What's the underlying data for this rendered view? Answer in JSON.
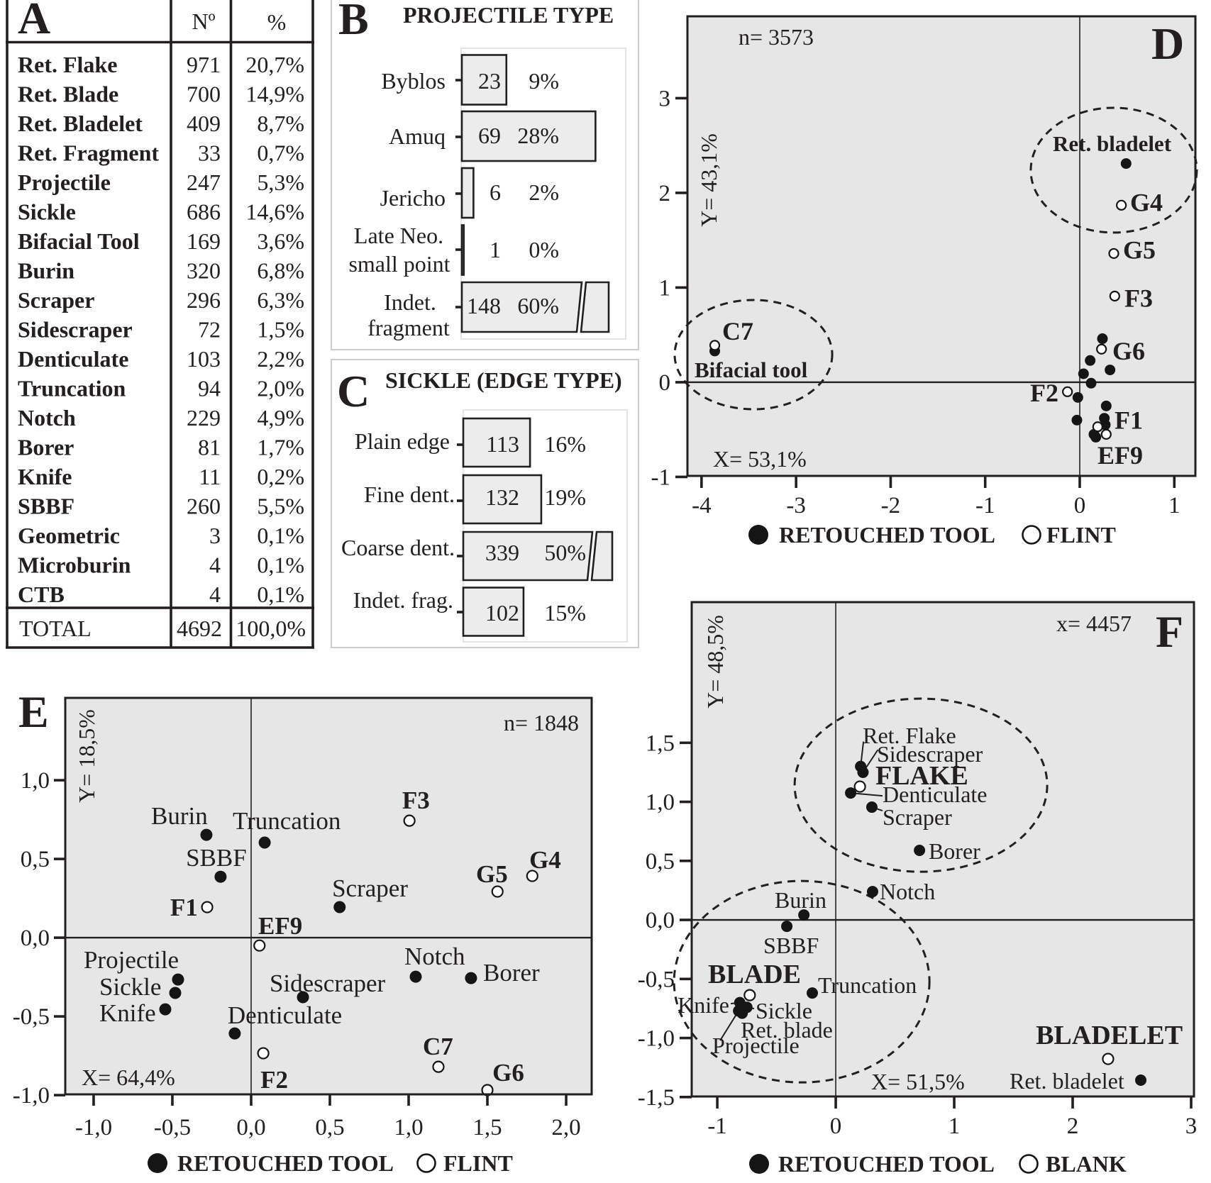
{
  "figure": {
    "colors": {
      "background": "#ffffff",
      "plot_background": "#e6e6e6",
      "bar_fill": "#ececec",
      "ink": "#231f20",
      "frame_gray": "#cdcdcd"
    }
  },
  "chart_data": [
    {
      "panel": "A",
      "type": "table",
      "label": "A",
      "columns": {
        "name": "",
        "count": "Nº",
        "percent": "%"
      },
      "rows": [
        {
          "name": "Ret. Flake",
          "count": "971",
          "percent": "20,7%"
        },
        {
          "name": "Ret. Blade",
          "count": "700",
          "percent": "14,9%"
        },
        {
          "name": "Ret. Bladelet",
          "count": "409",
          "percent": "8,7%"
        },
        {
          "name": "Ret. Fragment",
          "count": "33",
          "percent": "0,7%"
        },
        {
          "name": "Projectile",
          "count": "247",
          "percent": "5,3%"
        },
        {
          "name": "Sickle",
          "count": "686",
          "percent": "14,6%"
        },
        {
          "name": "Bifacial Tool",
          "count": "169",
          "percent": "3,6%"
        },
        {
          "name": "Burin",
          "count": "320",
          "percent": "6,8%"
        },
        {
          "name": "Scraper",
          "count": "296",
          "percent": "6,3%"
        },
        {
          "name": "Sidescraper",
          "count": "72",
          "percent": "1,5%"
        },
        {
          "name": "Denticulate",
          "count": "103",
          "percent": "2,2%"
        },
        {
          "name": "Truncation",
          "count": "94",
          "percent": "2,0%"
        },
        {
          "name": "Notch",
          "count": "229",
          "percent": "4,9%"
        },
        {
          "name": "Borer",
          "count": "81",
          "percent": "1,7%"
        },
        {
          "name": "Knife",
          "count": "11",
          "percent": "0,2%"
        },
        {
          "name": "SBBF",
          "count": "260",
          "percent": "5,5%"
        },
        {
          "name": "Geometric",
          "count": "3",
          "percent": "0,1%"
        },
        {
          "name": "Microburin",
          "count": "4",
          "percent": "0,1%"
        },
        {
          "name": "CTB",
          "count": "4",
          "percent": "0,1%"
        }
      ],
      "total": {
        "name": "TOTAL",
        "count": "4692",
        "percent": "100,0%"
      }
    },
    {
      "panel": "B",
      "type": "bar",
      "orientation": "horizontal",
      "label": "B",
      "title": "PROJECTILE TYPE",
      "categories": [
        "Byblos",
        "Amuq",
        "Jericho",
        "Late Neo. small point",
        "Indet. fragment"
      ],
      "category_lines": [
        [
          "Byblos"
        ],
        [
          "Amuq"
        ],
        [
          "Jericho"
        ],
        [
          "Late Neo.",
          "small point"
        ],
        [
          "Indet.",
          "fragment"
        ]
      ],
      "values": [
        23,
        69,
        6,
        1,
        148
      ],
      "value_labels": [
        "23",
        "69",
        "6",
        "1",
        "148"
      ],
      "percent_labels": [
        "9%",
        "28%",
        "2%",
        "0%",
        "60%"
      ],
      "broken_bars": [
        "Indet. fragment"
      ],
      "xlabel": "",
      "ylabel": ""
    },
    {
      "panel": "C",
      "type": "bar",
      "orientation": "horizontal",
      "label": "C",
      "title": "SICKLE (EDGE TYPE)",
      "categories": [
        "Plain edge",
        "Fine dent.",
        "Coarse dent.",
        "Indet. frag."
      ],
      "category_lines": [
        [
          "Plain edge"
        ],
        [
          "Fine dent."
        ],
        [
          "Coarse dent."
        ],
        [
          "Indet. frag."
        ]
      ],
      "values": [
        113,
        132,
        339,
        102
      ],
      "value_labels": [
        "113",
        "132",
        "339",
        "102"
      ],
      "percent_labels": [
        "16%",
        "19%",
        "50%",
        "15%"
      ],
      "broken_bars": [
        "Coarse dent."
      ],
      "xlabel": "",
      "ylabel": ""
    },
    {
      "panel": "D",
      "type": "scatter",
      "label": "D",
      "annotation": "n= 3573",
      "xlabel": "X= 53,1%",
      "ylabel": "Y= 43,1%",
      "xlim": [
        -4.149,
        1.223
      ],
      "ylim": [
        -0.989,
        3.865
      ],
      "xticks": [
        -4,
        -3,
        -2,
        -1,
        0,
        1
      ],
      "xtick_labels": [
        "-4",
        "-3",
        "-2",
        "-1",
        "0",
        "1"
      ],
      "yticks": [
        -1,
        0,
        1,
        2,
        3
      ],
      "ytick_labels": [
        "-1",
        "0",
        "1",
        "2",
        "3"
      ],
      "grid": false,
      "legend_position": "bottom",
      "legend": [
        {
          "marker": "filled",
          "label": "RETOUCHED TOOL"
        },
        {
          "marker": "open",
          "label": "FLINT"
        }
      ],
      "ellipses": [
        {
          "group": "Ret. bladelet",
          "cx": 0.36,
          "cy": 2.24,
          "rx": 0.878,
          "ry": 0.659
        },
        {
          "group": "Bifacial tool",
          "cx": -3.451,
          "cy": 0.292,
          "rx": 0.833,
          "ry": 0.577
        }
      ],
      "series": [
        {
          "name": "RETOUCHED TOOL",
          "marker": "filled",
          "points": [
            {
              "x": 0.49,
              "y": 2.31,
              "label": "Ret. bladelet",
              "lx": -0.285,
              "ly": 2.52,
              "style": "category"
            },
            {
              "x": -3.86,
              "y": 0.33,
              "label": "Bifacial tool",
              "lx": -4.074,
              "ly": 0.13,
              "style": "category"
            },
            {
              "x": 0.24,
              "y": 0.46
            },
            {
              "x": 0.11,
              "y": 0.23
            },
            {
              "x": 0.32,
              "y": 0.13
            },
            {
              "x": 0.04,
              "y": 0.09
            },
            {
              "x": 0.12,
              "y": -0.01
            },
            {
              "x": -0.02,
              "y": -0.16
            },
            {
              "x": 0.28,
              "y": -0.25
            },
            {
              "x": -0.03,
              "y": -0.4
            },
            {
              "x": 0.26,
              "y": -0.38
            },
            {
              "x": 0.27,
              "y": -0.45
            },
            {
              "x": 0.15,
              "y": -0.55
            },
            {
              "x": 0.17,
              "y": -0.58
            }
          ]
        },
        {
          "name": "FLINT",
          "marker": "open",
          "points": [
            {
              "x": 0.44,
              "y": 1.87,
              "label": "G4",
              "lx": 0.533,
              "ly": 1.9,
              "style": "code"
            },
            {
              "x": 0.36,
              "y": 1.36,
              "label": "G5",
              "lx": 0.458,
              "ly": 1.4,
              "style": "code"
            },
            {
              "x": 0.37,
              "y": 0.91,
              "label": "F3",
              "lx": 0.473,
              "ly": 0.89,
              "style": "code"
            },
            {
              "x": 0.23,
              "y": 0.35,
              "label": "G6",
              "lx": 0.345,
              "ly": 0.33,
              "style": "code"
            },
            {
              "x": -3.86,
              "y": 0.39,
              "label": "C7",
              "lx": -3.781,
              "ly": 0.54,
              "style": "code"
            },
            {
              "x": -0.13,
              "y": -0.1,
              "label": "F2",
              "lx": -0.525,
              "ly": -0.11,
              "style": "code"
            },
            {
              "x": 0.19,
              "y": -0.47,
              "label": "F1",
              "lx": 0.368,
              "ly": -0.4,
              "style": "code"
            },
            {
              "x": 0.28,
              "y": -0.55,
              "label": "EF9",
              "lx": 0.188,
              "ly": -0.77,
              "style": "code"
            }
          ]
        }
      ]
    },
    {
      "panel": "E",
      "type": "scatter",
      "label": "E",
      "annotation": "n= 1848",
      "xlabel": "X= 64,4%",
      "ylabel": "Y= 18,5%",
      "xlim": [
        -1.18,
        2.162
      ],
      "ylim": [
        -0.995,
        1.523
      ],
      "xticks": [
        -1.0,
        -0.5,
        0.0,
        0.5,
        1.0,
        1.5,
        2.0
      ],
      "xtick_labels": [
        "-1,0",
        "-0,5",
        "0,0",
        "0,5",
        "1,0",
        "1,5",
        "2,0"
      ],
      "yticks": [
        -1.0,
        -0.5,
        0.0,
        0.5,
        1.0
      ],
      "ytick_labels": [
        "-1,0",
        "-0,5",
        "0,0",
        "0,5",
        "1,0"
      ],
      "grid": false,
      "legend_position": "bottom",
      "legend": [
        {
          "marker": "filled",
          "label": "RETOUCHED TOOL"
        },
        {
          "marker": "open",
          "label": "FLINT"
        }
      ],
      "ellipses": [],
      "series": [
        {
          "name": "RETOUCHED TOOL",
          "marker": "filled",
          "points": [
            {
              "x": -0.284,
              "y": 0.653,
              "label": "Burin",
              "lx": -0.635,
              "ly": 0.775,
              "style": "category"
            },
            {
              "x": 0.086,
              "y": 0.604,
              "label": "Truncation",
              "lx": -0.117,
              "ly": 0.743,
              "style": "category"
            },
            {
              "x": -0.194,
              "y": 0.387,
              "label": "SBBF",
              "lx": -0.414,
              "ly": 0.509,
              "style": "category"
            },
            {
              "x": 0.562,
              "y": 0.194,
              "label": "Scraper",
              "lx": 0.514,
              "ly": 0.315,
              "style": "category"
            },
            {
              "x": -0.464,
              "y": -0.266,
              "label": "Projectile",
              "lx": -1.063,
              "ly": -0.14,
              "style": "category"
            },
            {
              "x": -0.482,
              "y": -0.351,
              "label": "Sickle",
              "lx": -0.964,
              "ly": -0.311,
              "style": "category"
            },
            {
              "x": -0.545,
              "y": -0.455,
              "label": "Knife",
              "lx": -0.964,
              "ly": -0.477,
              "style": "category"
            },
            {
              "x": -0.104,
              "y": -0.608,
              "label": "Denticulate",
              "lx": -0.149,
              "ly": -0.491,
              "style": "category"
            },
            {
              "x": 0.329,
              "y": -0.378,
              "label": "Sidescraper",
              "lx": 0.117,
              "ly": -0.288,
              "style": "category"
            },
            {
              "x": 1.045,
              "y": -0.248,
              "label": "Notch",
              "lx": 0.973,
              "ly": -0.117,
              "style": "category"
            },
            {
              "x": 1.396,
              "y": -0.257,
              "label": "Borer",
              "lx": 1.473,
              "ly": -0.221,
              "style": "category"
            }
          ]
        },
        {
          "name": "FLINT",
          "marker": "open",
          "points": [
            {
              "x": 1.005,
              "y": 0.743,
              "label": "F3",
              "lx": 0.959,
              "ly": 0.874,
              "style": "code"
            },
            {
              "x": 1.564,
              "y": 0.293,
              "label": "G5",
              "lx": 1.428,
              "ly": 0.405,
              "style": "code"
            },
            {
              "x": 1.785,
              "y": 0.392,
              "label": "G4",
              "lx": 1.766,
              "ly": 0.495,
              "style": "code"
            },
            {
              "x": -0.279,
              "y": 0.194,
              "label": "F1",
              "lx": -0.514,
              "ly": 0.194,
              "style": "code"
            },
            {
              "x": 0.053,
              "y": -0.05,
              "label": "EF9",
              "lx": 0.045,
              "ly": 0.077,
              "style": "code"
            },
            {
              "x": 0.077,
              "y": -0.734,
              "label": "F2",
              "lx": 0.059,
              "ly": -0.901,
              "style": "code"
            },
            {
              "x": 1.189,
              "y": -0.82,
              "label": "C7",
              "lx": 1.09,
              "ly": -0.689,
              "style": "code"
            },
            {
              "x": 1.5,
              "y": -0.968,
              "label": "G6",
              "lx": 1.532,
              "ly": -0.856,
              "style": "code"
            }
          ]
        }
      ]
    },
    {
      "panel": "F",
      "type": "scatter",
      "label": "F",
      "annotation": "x= 4457",
      "xlabel": "X= 51,5%",
      "ylabel": "Y= 48,5%",
      "xlim": [
        -1.216,
        3.024
      ],
      "ylim": [
        -1.495,
        2.691
      ],
      "xticks": [
        -1,
        0,
        1,
        2,
        3
      ],
      "xtick_labels": [
        "-1",
        "0",
        "1",
        "2",
        "3"
      ],
      "yticks": [
        -1.5,
        -1.0,
        -0.5,
        0.0,
        0.5,
        1.0,
        1.5
      ],
      "ytick_labels": [
        "-1,5",
        "-1,0",
        "-0,5",
        "0,0",
        "0,5",
        "1,0",
        "1,5"
      ],
      "grid": false,
      "legend_position": "bottom",
      "legend": [
        {
          "marker": "filled",
          "label": "RETOUCHED TOOL"
        },
        {
          "marker": "open",
          "label": "BLANK"
        }
      ],
      "ellipses": [
        {
          "group": "FLAKE",
          "cx": 0.719,
          "cy": 1.141,
          "rx": 1.066,
          "ry": 0.733
        },
        {
          "group": "BLADE",
          "cx": -0.287,
          "cy": -0.523,
          "rx": 1.078,
          "ry": 0.853
        }
      ],
      "series": [
        {
          "name": "RETOUCHED TOOL",
          "marker": "filled",
          "points": [
            {
              "x": 0.21,
              "y": 1.3,
              "label": "Ret. Flake",
              "lx": 0.228,
              "ly": 1.562,
              "style": "category",
              "leader": [
                0.234,
                1.51
              ]
            },
            {
              "x": 0.23,
              "y": 1.25,
              "label": "Sidescraper",
              "lx": 0.347,
              "ly": 1.405,
              "style": "category",
              "leader": [
                0.356,
                1.441
              ]
            },
            {
              "x": 0.126,
              "y": 1.075,
              "label": "Denticulate",
              "lx": 0.395,
              "ly": 1.063,
              "style": "category",
              "leader": [
                0.395,
                1.051
              ]
            },
            {
              "x": 0.305,
              "y": 0.955,
              "label": "Scraper",
              "lx": 0.395,
              "ly": 0.871,
              "style": "category",
              "leader": [
                0.395,
                0.925
              ]
            },
            {
              "x": 0.707,
              "y": 0.589,
              "label": "Borer",
              "lx": 0.784,
              "ly": 0.583,
              "style": "category"
            },
            {
              "x": 0.311,
              "y": 0.24,
              "label": "Notch",
              "lx": 0.371,
              "ly": 0.24,
              "style": "category"
            },
            {
              "x": -0.269,
              "y": 0.042,
              "label": "Burin",
              "lx": -0.515,
              "ly": 0.168,
              "style": "category"
            },
            {
              "x": -0.413,
              "y": -0.054,
              "label": "SBBF",
              "lx": -0.611,
              "ly": -0.216,
              "style": "category"
            },
            {
              "x": -0.198,
              "y": -0.619,
              "label": "Truncation",
              "lx": -0.15,
              "ly": -0.553,
              "style": "category"
            },
            {
              "x": -0.81,
              "y": -0.7,
              "label": "Knife",
              "lx": -1.335,
              "ly": -0.721,
              "style": "category",
              "leader": [
                -0.886,
                -0.709
              ]
            },
            {
              "x": -0.75,
              "y": -0.74,
              "label": "Sickle",
              "lx": -0.677,
              "ly": -0.769,
              "style": "category",
              "leader": [
                -0.689,
                -0.751
              ]
            },
            {
              "x": -0.79,
              "y": -0.79,
              "label": "Ret. blade",
              "lx": -0.802,
              "ly": -0.931,
              "style": "category"
            },
            {
              "x": -0.82,
              "y": -0.77,
              "label": "Projectile",
              "lx": -1.042,
              "ly": -1.063,
              "style": "category",
              "leader": [
                -0.976,
                -1.021
              ]
            },
            {
              "x": 2.575,
              "y": -1.357,
              "label": "Ret. bladelet",
              "lx": 1.467,
              "ly": -1.363,
              "style": "category"
            }
          ]
        },
        {
          "name": "BLANK",
          "marker": "open",
          "points": [
            {
              "x": 0.204,
              "y": 1.129,
              "label": "FLAKE",
              "lx": 0.335,
              "ly": 1.225,
              "style": "group"
            },
            {
              "x": -0.726,
              "y": -0.637,
              "label": "BLADE",
              "lx": -1.078,
              "ly": -0.456,
              "style": "group"
            },
            {
              "x": 2.299,
              "y": -1.177,
              "label": "BLADELET",
              "lx": 1.689,
              "ly": -0.973,
              "style": "group"
            }
          ]
        }
      ]
    }
  ]
}
